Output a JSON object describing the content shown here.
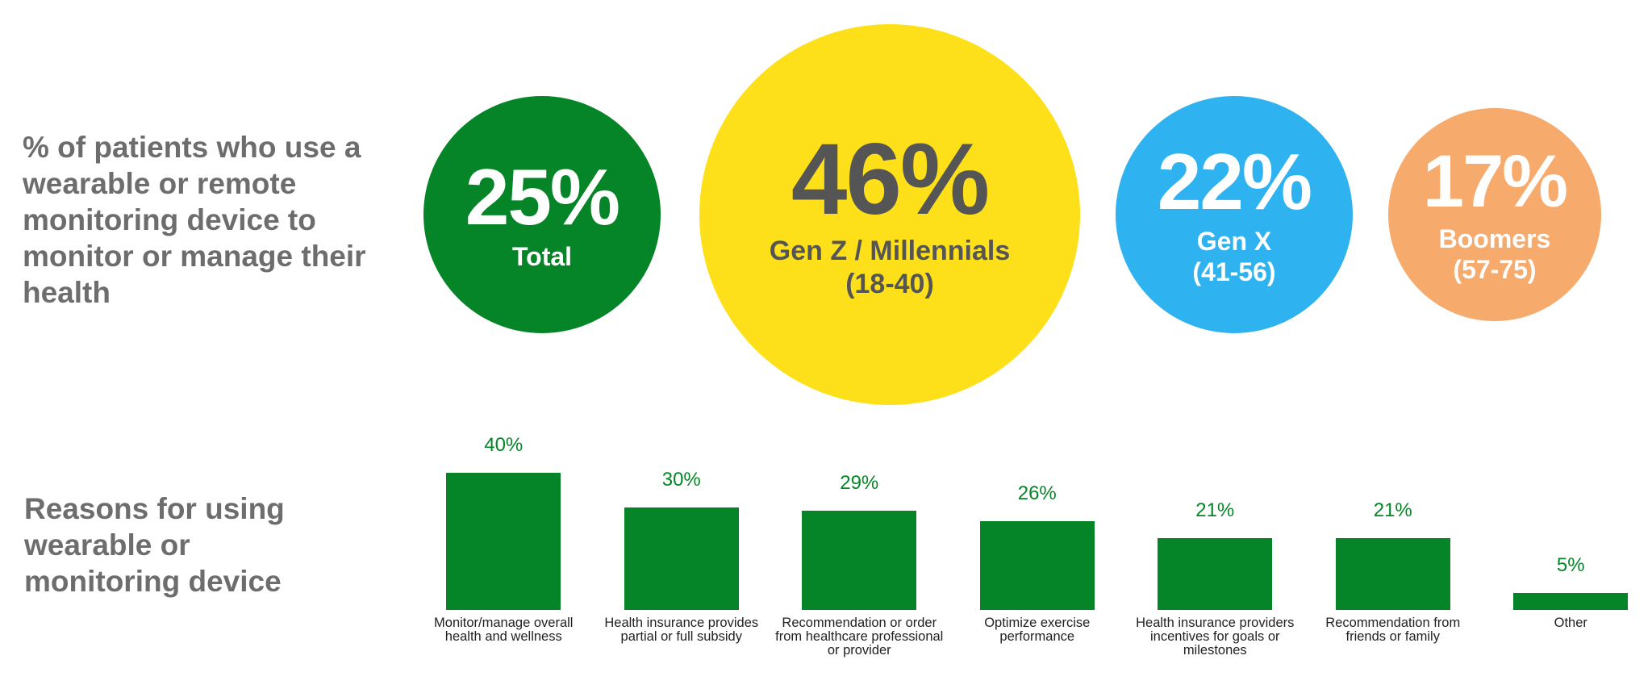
{
  "headline": "% of patients who use a wearable or remote monitoring device to monitor or manage their health",
  "circles": [
    {
      "value": "25%",
      "label": "Total",
      "color": "#058527",
      "text_color": "#ffffff"
    },
    {
      "value": "46%",
      "label": "Gen Z / Millennials (18-40)",
      "color": "#fde01a",
      "text_color": "#555555"
    },
    {
      "value": "22%",
      "label": "Gen X (41-56)",
      "color": "#2eb2f0",
      "text_color": "#ffffff"
    },
    {
      "value": "17%",
      "label": "Boomers (57-75)",
      "color": "#f6aa6c",
      "text_color": "#ffffff"
    }
  ],
  "chart_data": {
    "type": "bar",
    "title": "Reasons for using wearable or monitoring device",
    "categories": [
      "Monitor/manage overall health and wellness",
      "Health insurance provides partial or full subsidy",
      "Recommendation or order from healthcare professional or provider",
      "Optimize exercise performance",
      "Health insurance providers incentives for goals or milestones",
      "Recommendation from friends or family",
      "Other"
    ],
    "values": [
      40,
      30,
      29,
      26,
      21,
      21,
      5
    ],
    "value_labels": [
      "40%",
      "30%",
      "29%",
      "26%",
      "21%",
      "21%",
      "5%"
    ],
    "color": "#058527"
  }
}
